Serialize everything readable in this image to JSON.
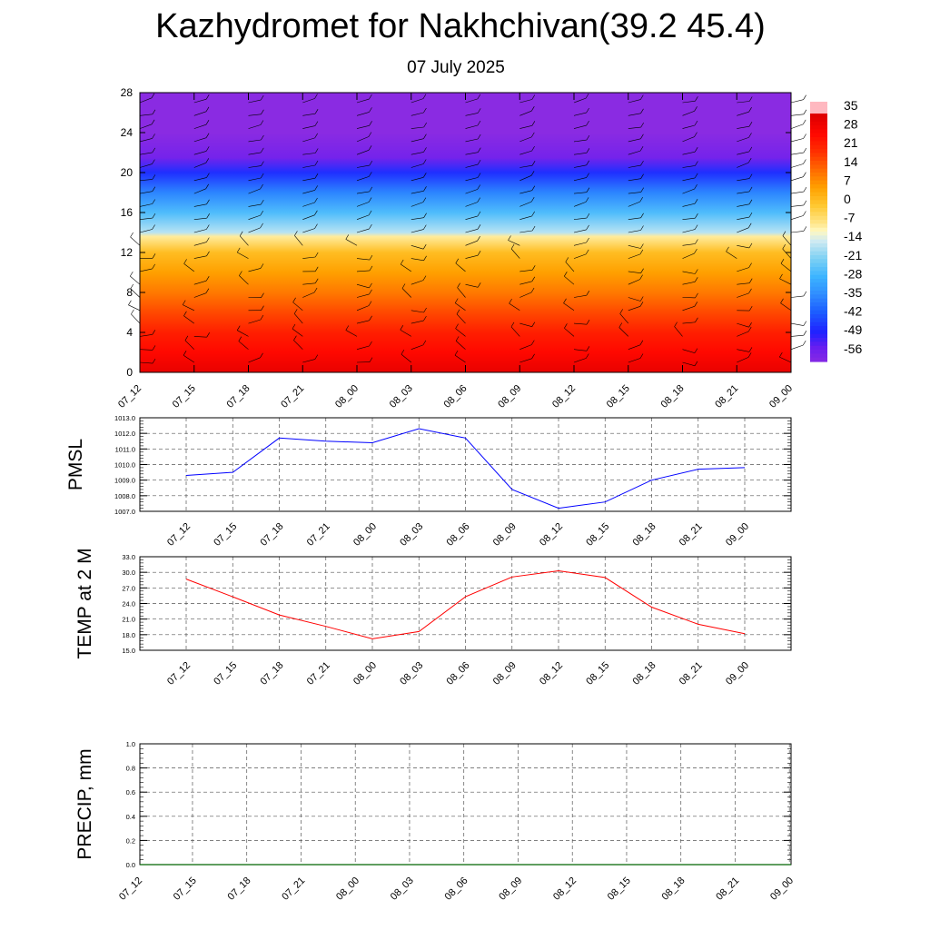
{
  "title": "Kazhydromet for Nakhchivan(39.2 45.4)",
  "subtitle": "07 July 2025",
  "chart_data": [
    {
      "type": "heatmap",
      "title": "",
      "x_tick_labels": [
        "07_12",
        "07_15",
        "07_18",
        "07_21",
        "08_00",
        "08_03",
        "08_06",
        "08_09",
        "08_12",
        "08_15",
        "08_18",
        "08_21",
        "09_00"
      ],
      "y_ticks": [
        0,
        4,
        8,
        12,
        16,
        20,
        24,
        28
      ],
      "ylim": [
        0,
        28
      ],
      "colorbar_labels": [
        "35",
        "28",
        "21",
        "14",
        "7",
        "0",
        "-7",
        "-14",
        "-21",
        "-28",
        "-35",
        "-42",
        "-49",
        "-56"
      ],
      "temperature_profile": [
        {
          "level": 0,
          "value": 33
        },
        {
          "level": 2,
          "value": 28
        },
        {
          "level": 4,
          "value": 24
        },
        {
          "level": 6,
          "value": 18
        },
        {
          "level": 8,
          "value": 12
        },
        {
          "level": 10,
          "value": 7
        },
        {
          "level": 12,
          "value": 2
        },
        {
          "level": 13.6,
          "value": -8
        },
        {
          "level": 14,
          "value": -16
        },
        {
          "level": 16,
          "value": -26
        },
        {
          "level": 18,
          "value": -36
        },
        {
          "level": 20,
          "value": -48
        },
        {
          "level": 21.5,
          "value": -58
        },
        {
          "level": 24,
          "value": -62
        },
        {
          "level": 28,
          "value": -62
        }
      ],
      "overlay": "wind barbs"
    },
    {
      "type": "line",
      "ylabel": "PMSL",
      "ylim": [
        1007.0,
        1013.0
      ],
      "y_tick_labels": [
        "1013.0",
        "1012.0",
        "1011.0",
        "1010.0",
        "1009.0",
        "1008.0",
        "1007.0"
      ],
      "x_tick_labels": [
        "07_12",
        "07_15",
        "07_18",
        "07_21",
        "08_00",
        "08_03",
        "08_06",
        "08_09",
        "08_12",
        "08_15",
        "08_18",
        "08_21",
        "09_00"
      ],
      "series": [
        {
          "values": [
            1009.3,
            1009.5,
            1011.7,
            1011.5,
            1011.4,
            1012.3,
            1011.7,
            1008.4,
            1007.2,
            1007.6,
            1009.0,
            1009.7,
            1009.8
          ],
          "color": "#0000ff"
        }
      ]
    },
    {
      "type": "line",
      "ylabel": "TEMP at 2 M",
      "ylim": [
        15.0,
        33.0
      ],
      "y_tick_labels": [
        "33.0",
        "30.0",
        "27.0",
        "24.0",
        "21.0",
        "18.0",
        "15.0"
      ],
      "x_tick_labels": [
        "07_12",
        "07_15",
        "07_18",
        "07_21",
        "08_00",
        "08_03",
        "08_06",
        "08_09",
        "08_12",
        "08_15",
        "08_18",
        "08_21",
        "09_00"
      ],
      "series": [
        {
          "values": [
            28.7,
            25.3,
            21.8,
            19.6,
            17.2,
            18.6,
            25.3,
            29.1,
            30.3,
            29.0,
            23.3,
            20.0,
            18.2
          ],
          "color": "#ff0000"
        }
      ]
    },
    {
      "type": "line",
      "ylabel": "PRECIP, mm",
      "ylim": [
        0.0,
        1.0
      ],
      "y_tick_labels": [
        "1.0",
        "0.8",
        "0.6",
        "0.4",
        "0.2",
        "0.0"
      ],
      "x_tick_labels": [
        "07_12",
        "07_15",
        "07_18",
        "07_21",
        "08_00",
        "08_03",
        "08_06",
        "08_09",
        "08_12",
        "08_15",
        "08_18",
        "08_21",
        "09_00"
      ],
      "series": [
        {
          "values": [
            0,
            0,
            0,
            0,
            0,
            0,
            0,
            0,
            0,
            0,
            0,
            0,
            0
          ],
          "color": "#006400"
        }
      ]
    }
  ]
}
